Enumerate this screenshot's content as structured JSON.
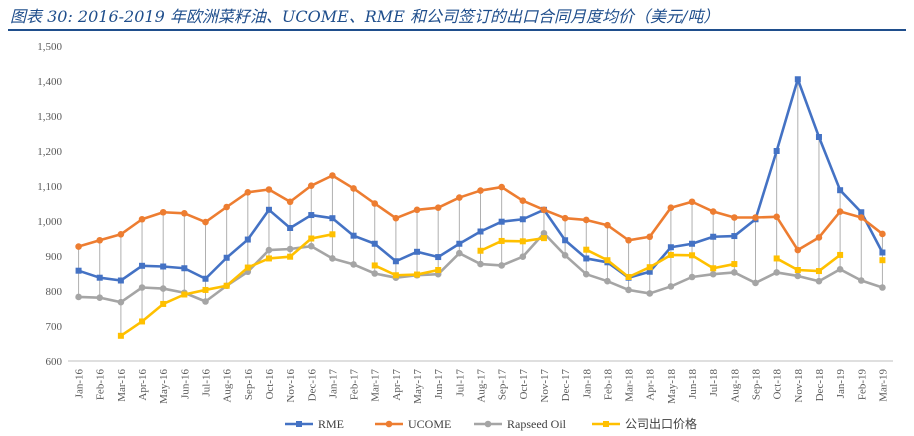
{
  "title": "图表 30:  2016-2019 年欧洲菜籽油、UCOME、RME 和公司签订的出口合同月度均价（美元/吨）",
  "chart_data": {
    "type": "line",
    "title": "图表 30:  2016-2019 年欧洲菜籽油、UCOME、RME 和公司签订的出口合同月度均价（美元/吨）",
    "ylim": [
      600,
      1500
    ],
    "yticks": [
      "600",
      "700",
      "800",
      "900",
      "1,000",
      "1,100",
      "1,200",
      "1,300",
      "1,400",
      "1,500"
    ],
    "grid": false,
    "legend_position": "bottom",
    "x": [
      "Jan-16",
      "Feb-16",
      "Mar-16",
      "Apr-16",
      "May-16",
      "Jun-16",
      "Jul-16",
      "Aug-16",
      "Sep-16",
      "Oct-16",
      "Nov-16",
      "Dec-16",
      "Jan-17",
      "Feb-17",
      "Mar-17",
      "Apr-17",
      "May-17",
      "Jun-17",
      "Jul-17",
      "Aug-17",
      "Sep-17",
      "Oct-17",
      "Nov-17",
      "Dec-17",
      "Jan-18",
      "Feb-18",
      "Mar-18",
      "Apr-18",
      "May-18",
      "Jun-18",
      "Jul-18",
      "Aug-18",
      "Sep-18",
      "Oct-18",
      "Nov-18",
      "Dec-18",
      "Jan-19",
      "Feb-19",
      "Mar-19"
    ],
    "series": [
      {
        "name": "RME",
        "color": "#4472c4",
        "marker": "square",
        "values": [
          858,
          838,
          830,
          872,
          870,
          865,
          835,
          895,
          947,
          1032,
          980,
          1017,
          1008,
          958,
          935,
          885,
          912,
          897,
          935,
          970,
          998,
          1005,
          1032,
          945,
          893,
          882,
          838,
          855,
          925,
          935,
          955,
          957,
          1005,
          1200,
          1405,
          1240,
          1088,
          1025,
          910
        ]
      },
      {
        "name": "UCOME",
        "color": "#ed7d31",
        "marker": "circle",
        "values": [
          927,
          945,
          962,
          1005,
          1025,
          1022,
          997,
          1040,
          1082,
          1090,
          1055,
          1101,
          1130,
          1093,
          1050,
          1008,
          1032,
          1038,
          1067,
          1087,
          1097,
          1058,
          1032,
          1008,
          1003,
          988,
          945,
          955,
          1038,
          1055,
          1027,
          1010,
          1010,
          1012,
          917,
          953,
          1027,
          1010,
          963
        ]
      },
      {
        "name": "Rapseed Oil",
        "color": "#a5a5a5",
        "marker": "circle",
        "values": [
          783,
          781,
          768,
          810,
          807,
          795,
          770,
          815,
          855,
          917,
          920,
          928,
          893,
          876,
          850,
          838,
          845,
          848,
          908,
          877,
          873,
          898,
          965,
          902,
          848,
          828,
          803,
          793,
          813,
          840,
          848,
          853,
          823,
          853,
          843,
          828,
          862,
          830,
          810
        ]
      },
      {
        "name": "公司出口价格",
        "color": "#ffc000",
        "marker": "square",
        "values": [
          null,
          null,
          672,
          713,
          763,
          790,
          803,
          815,
          867,
          893,
          898,
          950,
          962,
          null,
          873,
          845,
          847,
          860,
          null,
          915,
          943,
          942,
          951,
          null,
          918,
          888,
          840,
          868,
          903,
          902,
          865,
          877,
          null,
          893,
          860,
          857,
          903,
          null,
          888
        ]
      }
    ]
  }
}
